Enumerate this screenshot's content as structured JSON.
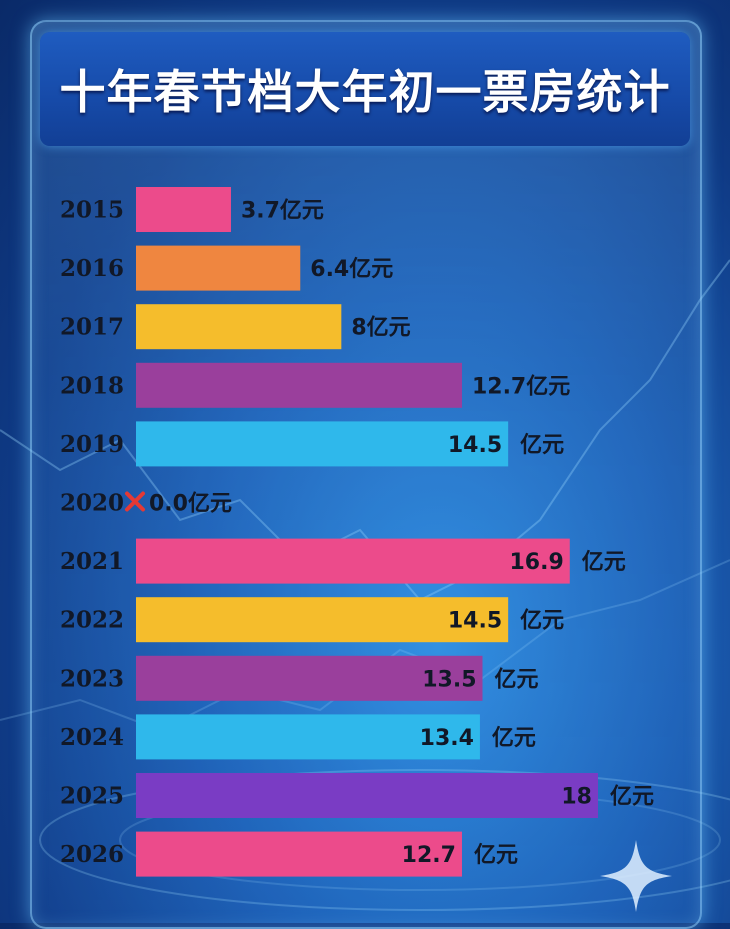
{
  "title": "十年春节档大年初一票房统计",
  "unit": "亿元",
  "colors": {
    "pink": "#ec4b8b",
    "orange": "#ef8640",
    "yellow": "#f5bd2c",
    "purple": "#9a3f9c",
    "cyan": "#2fb8eb",
    "violet": "#7a3cc4",
    "cross": "#e53935"
  },
  "chart_data": {
    "type": "bar",
    "orientation": "horizontal",
    "title": "十年春节档大年初一票房统计",
    "unit": "亿元",
    "xlim": [
      0,
      18
    ],
    "grid": false,
    "categories": [
      "2015",
      "2016",
      "2017",
      "2018",
      "2019",
      "2020",
      "2021",
      "2022",
      "2023",
      "2024",
      "2025",
      "2026"
    ],
    "values": [
      3.7,
      6.4,
      8,
      12.7,
      14.5,
      0.0,
      16.9,
      14.5,
      13.5,
      13.4,
      18,
      12.7
    ],
    "value_labels": [
      "3.7",
      "6.4",
      "8",
      "12.7",
      "14.5",
      "0.0",
      "16.9",
      "14.5",
      "13.5",
      "13.4",
      "18",
      "12.7"
    ],
    "label_inside": [
      false,
      false,
      false,
      false,
      true,
      false,
      true,
      true,
      true,
      true,
      true,
      true
    ],
    "unit_spaced": [
      false,
      false,
      false,
      false,
      true,
      false,
      true,
      true,
      true,
      true,
      true,
      true
    ],
    "bar_colors": [
      "#ec4b8b",
      "#ef8640",
      "#f5bd2c",
      "#9a3f9c",
      "#2fb8eb",
      "#e53935",
      "#ec4b8b",
      "#f5bd2c",
      "#9a3f9c",
      "#2fb8eb",
      "#7a3cc4",
      "#ec4b8b"
    ],
    "markers": [
      null,
      null,
      null,
      null,
      null,
      "cross-icon",
      null,
      null,
      null,
      null,
      null,
      null
    ]
  }
}
